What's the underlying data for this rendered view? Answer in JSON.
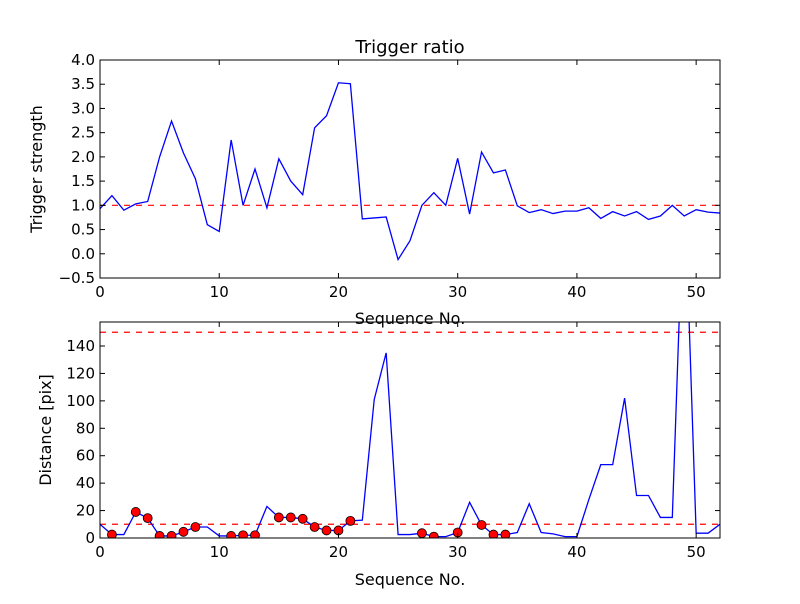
{
  "chart_data": [
    {
      "type": "line",
      "title": "Trigger ratio",
      "xlabel": "Sequence No.",
      "ylabel": "Trigger strength",
      "xlim": [
        0,
        52
      ],
      "ylim": [
        -0.5,
        4.0
      ],
      "xticks": [
        "0",
        "10",
        "20",
        "30",
        "40",
        "50"
      ],
      "yticks": [
        "−0.5",
        "0.0",
        "0.5",
        "1.0",
        "1.5",
        "2.0",
        "2.5",
        "3.0",
        "3.5",
        "4.0"
      ],
      "threshold": 1.0,
      "series": [
        {
          "name": "trigger strength",
          "color": "#0000ff",
          "x": [
            0,
            1,
            2,
            3,
            4,
            5,
            6,
            7,
            8,
            9,
            10,
            11,
            12,
            13,
            14,
            15,
            16,
            17,
            18,
            19,
            20,
            21,
            22,
            23,
            24,
            25,
            26,
            27,
            28,
            29,
            30,
            31,
            32,
            33,
            34,
            35,
            36,
            37,
            38,
            39,
            40,
            41,
            42,
            43,
            44,
            45,
            46,
            47,
            48,
            49,
            50,
            51,
            52
          ],
          "values": [
            0.93,
            1.2,
            0.9,
            1.03,
            1.08,
            2.0,
            2.74,
            2.08,
            1.55,
            0.6,
            0.46,
            2.35,
            1.0,
            1.75,
            0.95,
            1.96,
            1.5,
            1.22,
            2.6,
            2.85,
            3.53,
            3.51,
            0.72,
            0.74,
            0.76,
            -0.12,
            0.27,
            1.0,
            1.26,
            1.0,
            1.97,
            0.82,
            2.1,
            1.67,
            1.73,
            0.99,
            0.85,
            0.91,
            0.83,
            0.88,
            0.88,
            0.95,
            0.73,
            0.87,
            0.78,
            0.87,
            0.71,
            0.78,
            1.0,
            0.78,
            0.91,
            0.86,
            0.84
          ]
        }
      ],
      "threshold_color": "#ff0000"
    },
    {
      "type": "line",
      "title": "",
      "xlabel": "Sequence No.",
      "ylabel": "Distance [pix]",
      "xlim": [
        0,
        52
      ],
      "ylim": [
        0,
        157.5
      ],
      "xticks": [
        "0",
        "10",
        "20",
        "30",
        "40",
        "50"
      ],
      "yticks": [
        "0",
        "20",
        "40",
        "60",
        "80",
        "100",
        "120",
        "140"
      ],
      "thresholds": [
        10,
        150
      ],
      "series": [
        {
          "name": "distance",
          "color": "#0000ff",
          "x": [
            0,
            1,
            2,
            3,
            4,
            5,
            6,
            7,
            8,
            9,
            10,
            11,
            12,
            13,
            14,
            15,
            16,
            17,
            18,
            19,
            20,
            21,
            22,
            23,
            24,
            25,
            26,
            27,
            28,
            29,
            30,
            31,
            32,
            33,
            34,
            35,
            36,
            37,
            38,
            39,
            40,
            41,
            42,
            43,
            44,
            45,
            46,
            47,
            48,
            49,
            50,
            51,
            52
          ],
          "values": [
            10,
            2.5,
            2.5,
            19,
            14.5,
            1.5,
            1.5,
            4.5,
            8,
            8,
            1.5,
            1.5,
            2,
            2,
            23,
            15,
            15,
            14,
            8,
            5.5,
            5.5,
            12.5,
            13,
            101,
            135,
            2.5,
            2.5,
            3.5,
            1,
            1,
            4,
            26,
            9.5,
            2.5,
            2.5,
            4,
            25,
            4,
            3,
            1,
            1,
            28,
            53.5,
            53.5,
            102,
            31,
            31,
            15,
            15,
            265,
            3.5,
            3.5,
            10
          ]
        },
        {
          "name": "triggered",
          "color": "#ff0000",
          "marker": "circle",
          "x": [
            1,
            3,
            4,
            5,
            6,
            7,
            8,
            11,
            12,
            13,
            15,
            16,
            17,
            18,
            19,
            20,
            21,
            27,
            28,
            30,
            32,
            33,
            34
          ],
          "values": [
            2.5,
            19,
            14.5,
            1.5,
            1.5,
            4.5,
            8,
            1.5,
            2,
            2,
            15,
            15,
            14,
            8,
            5.5,
            5.5,
            12.5,
            3.5,
            1,
            4,
            9.5,
            2.5,
            2.5
          ]
        }
      ],
      "threshold_color": "#ff0000"
    }
  ]
}
